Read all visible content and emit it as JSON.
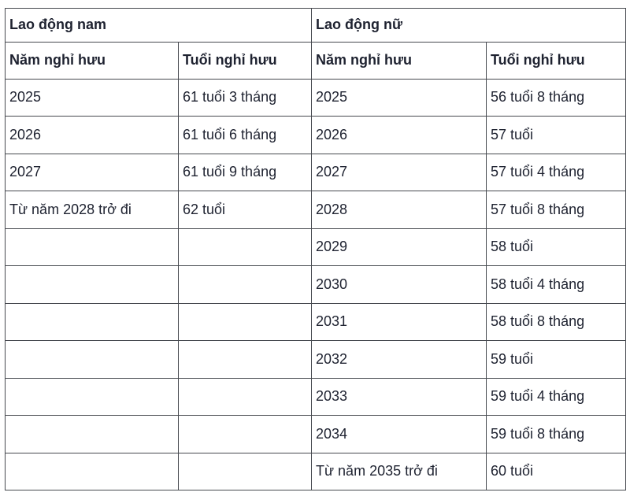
{
  "table": {
    "groups": [
      {
        "title": "Lao động nam"
      },
      {
        "title": "Lao động nữ"
      }
    ],
    "column_headers": [
      "Năm nghỉ hưu",
      "Tuổi nghỉ hưu",
      "Năm nghỉ hưu",
      "Tuổi nghỉ hưu"
    ],
    "rows": [
      [
        "2025",
        "61 tuổi 3 tháng",
        "2025",
        "56 tuổi 8 tháng"
      ],
      [
        "2026",
        "61 tuổi 6 tháng",
        "2026",
        "57 tuổi"
      ],
      [
        "2027",
        "61 tuổi 9 tháng",
        "2027",
        "57 tuổi 4 tháng"
      ],
      [
        "Từ năm 2028 trở đi",
        "62 tuổi",
        "2028",
        "57 tuổi 8 tháng"
      ],
      [
        "",
        "",
        "2029",
        "58 tuổi"
      ],
      [
        "",
        "",
        "2030",
        "58 tuổi 4 tháng"
      ],
      [
        "",
        "",
        "2031",
        "58 tuổi 8 tháng"
      ],
      [
        "",
        "",
        "2032",
        "59 tuổi"
      ],
      [
        "",
        "",
        "2033",
        "59 tuổi 4 tháng"
      ],
      [
        "",
        "",
        "2034",
        "59 tuổi 8 tháng"
      ],
      [
        "",
        "",
        "Từ năm 2035 trở đi",
        "60 tuổi"
      ]
    ],
    "colors": {
      "text": "#1e2230",
      "border": "#46494f",
      "background": "#ffffff"
    }
  }
}
